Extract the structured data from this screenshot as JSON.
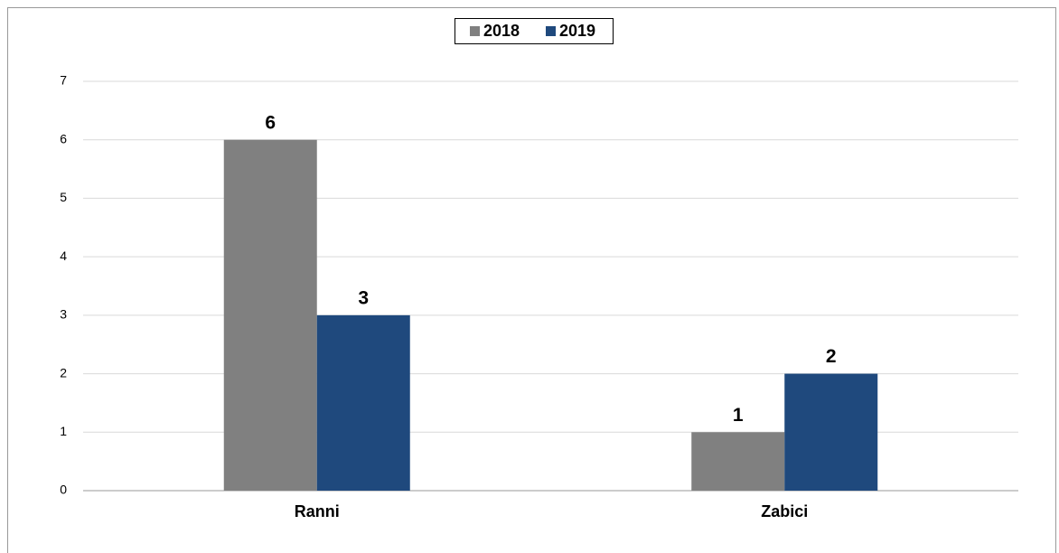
{
  "chart_data": {
    "type": "bar",
    "categories": [
      "Ranni",
      "Zabici"
    ],
    "series": [
      {
        "name": "2018",
        "color": "#808080",
        "values": [
          6,
          1
        ]
      },
      {
        "name": "2019",
        "color": "#1f497d",
        "values": [
          3,
          2
        ]
      }
    ],
    "ylim": [
      0,
      7
    ],
    "yticks": [
      0,
      1,
      2,
      3,
      4,
      5,
      6,
      7
    ],
    "grid": true,
    "legend": "top"
  }
}
